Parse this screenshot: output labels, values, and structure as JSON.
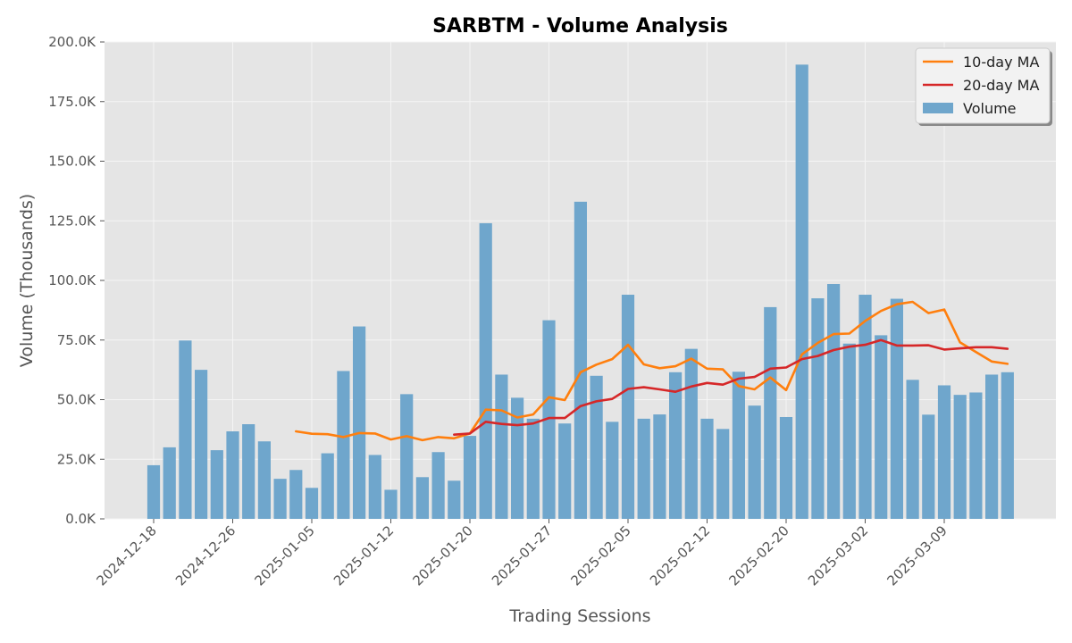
{
  "chart_data": {
    "type": "bar",
    "title": "SARBTM - Volume Analysis",
    "xlabel": "Trading Sessions",
    "ylabel": "Volume (Thousands)",
    "ylim": [
      0,
      200000
    ],
    "y_ticks": [
      0,
      25000,
      50000,
      75000,
      100000,
      125000,
      150000,
      175000,
      200000
    ],
    "y_tick_labels": [
      "0.0K",
      "25.0K",
      "50.0K",
      "75.0K",
      "100.0K",
      "125.0K",
      "150.0K",
      "175.0K",
      "200.0K"
    ],
    "x_tick_labels": [
      "2024-12-18",
      "2024-12-26",
      "2025-01-05",
      "2025-01-12",
      "2025-01-20",
      "2025-01-27",
      "2025-02-05",
      "2025-02-12",
      "2025-02-20",
      "2025-03-02",
      "2025-03-09"
    ],
    "x_tick_indices": [
      0,
      5,
      10,
      15,
      20,
      25,
      30,
      35,
      40,
      45,
      50
    ],
    "grid": true,
    "legend_position": "top-right",
    "colors": {
      "volume": "#6fa6cc",
      "ma10": "#ff7f0e",
      "ma20": "#d62728",
      "plot_bg": "#e5e5e5",
      "grid": "#f5f5f5"
    },
    "series": [
      {
        "name": "Volume",
        "kind": "bar",
        "values": [
          22500,
          30000,
          74800,
          62500,
          28800,
          36700,
          39700,
          32500,
          16800,
          20500,
          13000,
          27500,
          62000,
          80700,
          26800,
          12200,
          52300,
          17500,
          28000,
          16000,
          34800,
          124000,
          60500,
          50800,
          42000,
          83300,
          40000,
          133000,
          60000,
          40700,
          94000,
          42000,
          43800,
          61500,
          71300,
          42000,
          37700,
          61700,
          47500,
          88800,
          42700,
          190500,
          92500,
          98500,
          73500,
          94000,
          77000,
          92300,
          58300,
          43700,
          56000,
          52000,
          53000,
          60500,
          61500
        ]
      },
      {
        "name": "10-day MA",
        "kind": "line",
        "values": [
          null,
          null,
          null,
          null,
          null,
          null,
          null,
          null,
          null,
          36700,
          35700,
          35500,
          34300,
          36000,
          35800,
          33300,
          34700,
          33000,
          34300,
          33800,
          35800,
          45800,
          45500,
          42500,
          43800,
          51000,
          49800,
          61500,
          64700,
          67000,
          73000,
          64800,
          63200,
          64000,
          67200,
          63000,
          62700,
          55700,
          54300,
          59300,
          54000,
          69000,
          73800,
          77500,
          77700,
          83000,
          87200,
          90000,
          91000,
          86300,
          87800,
          74000,
          70000,
          66000,
          65000
        ]
      },
      {
        "name": "20-day MA",
        "kind": "line",
        "values": [
          null,
          null,
          null,
          null,
          null,
          null,
          null,
          null,
          null,
          null,
          null,
          null,
          null,
          null,
          null,
          null,
          null,
          null,
          null,
          35300,
          35800,
          40700,
          39800,
          39300,
          40000,
          42300,
          42300,
          47300,
          49300,
          50300,
          54500,
          55200,
          54300,
          53300,
          55500,
          57000,
          56300,
          58800,
          59500,
          63000,
          63500,
          67000,
          68300,
          70800,
          72200,
          73000,
          75000,
          72700,
          72700,
          72800,
          71000,
          71500,
          72000,
          72000,
          71300
        ]
      }
    ]
  }
}
